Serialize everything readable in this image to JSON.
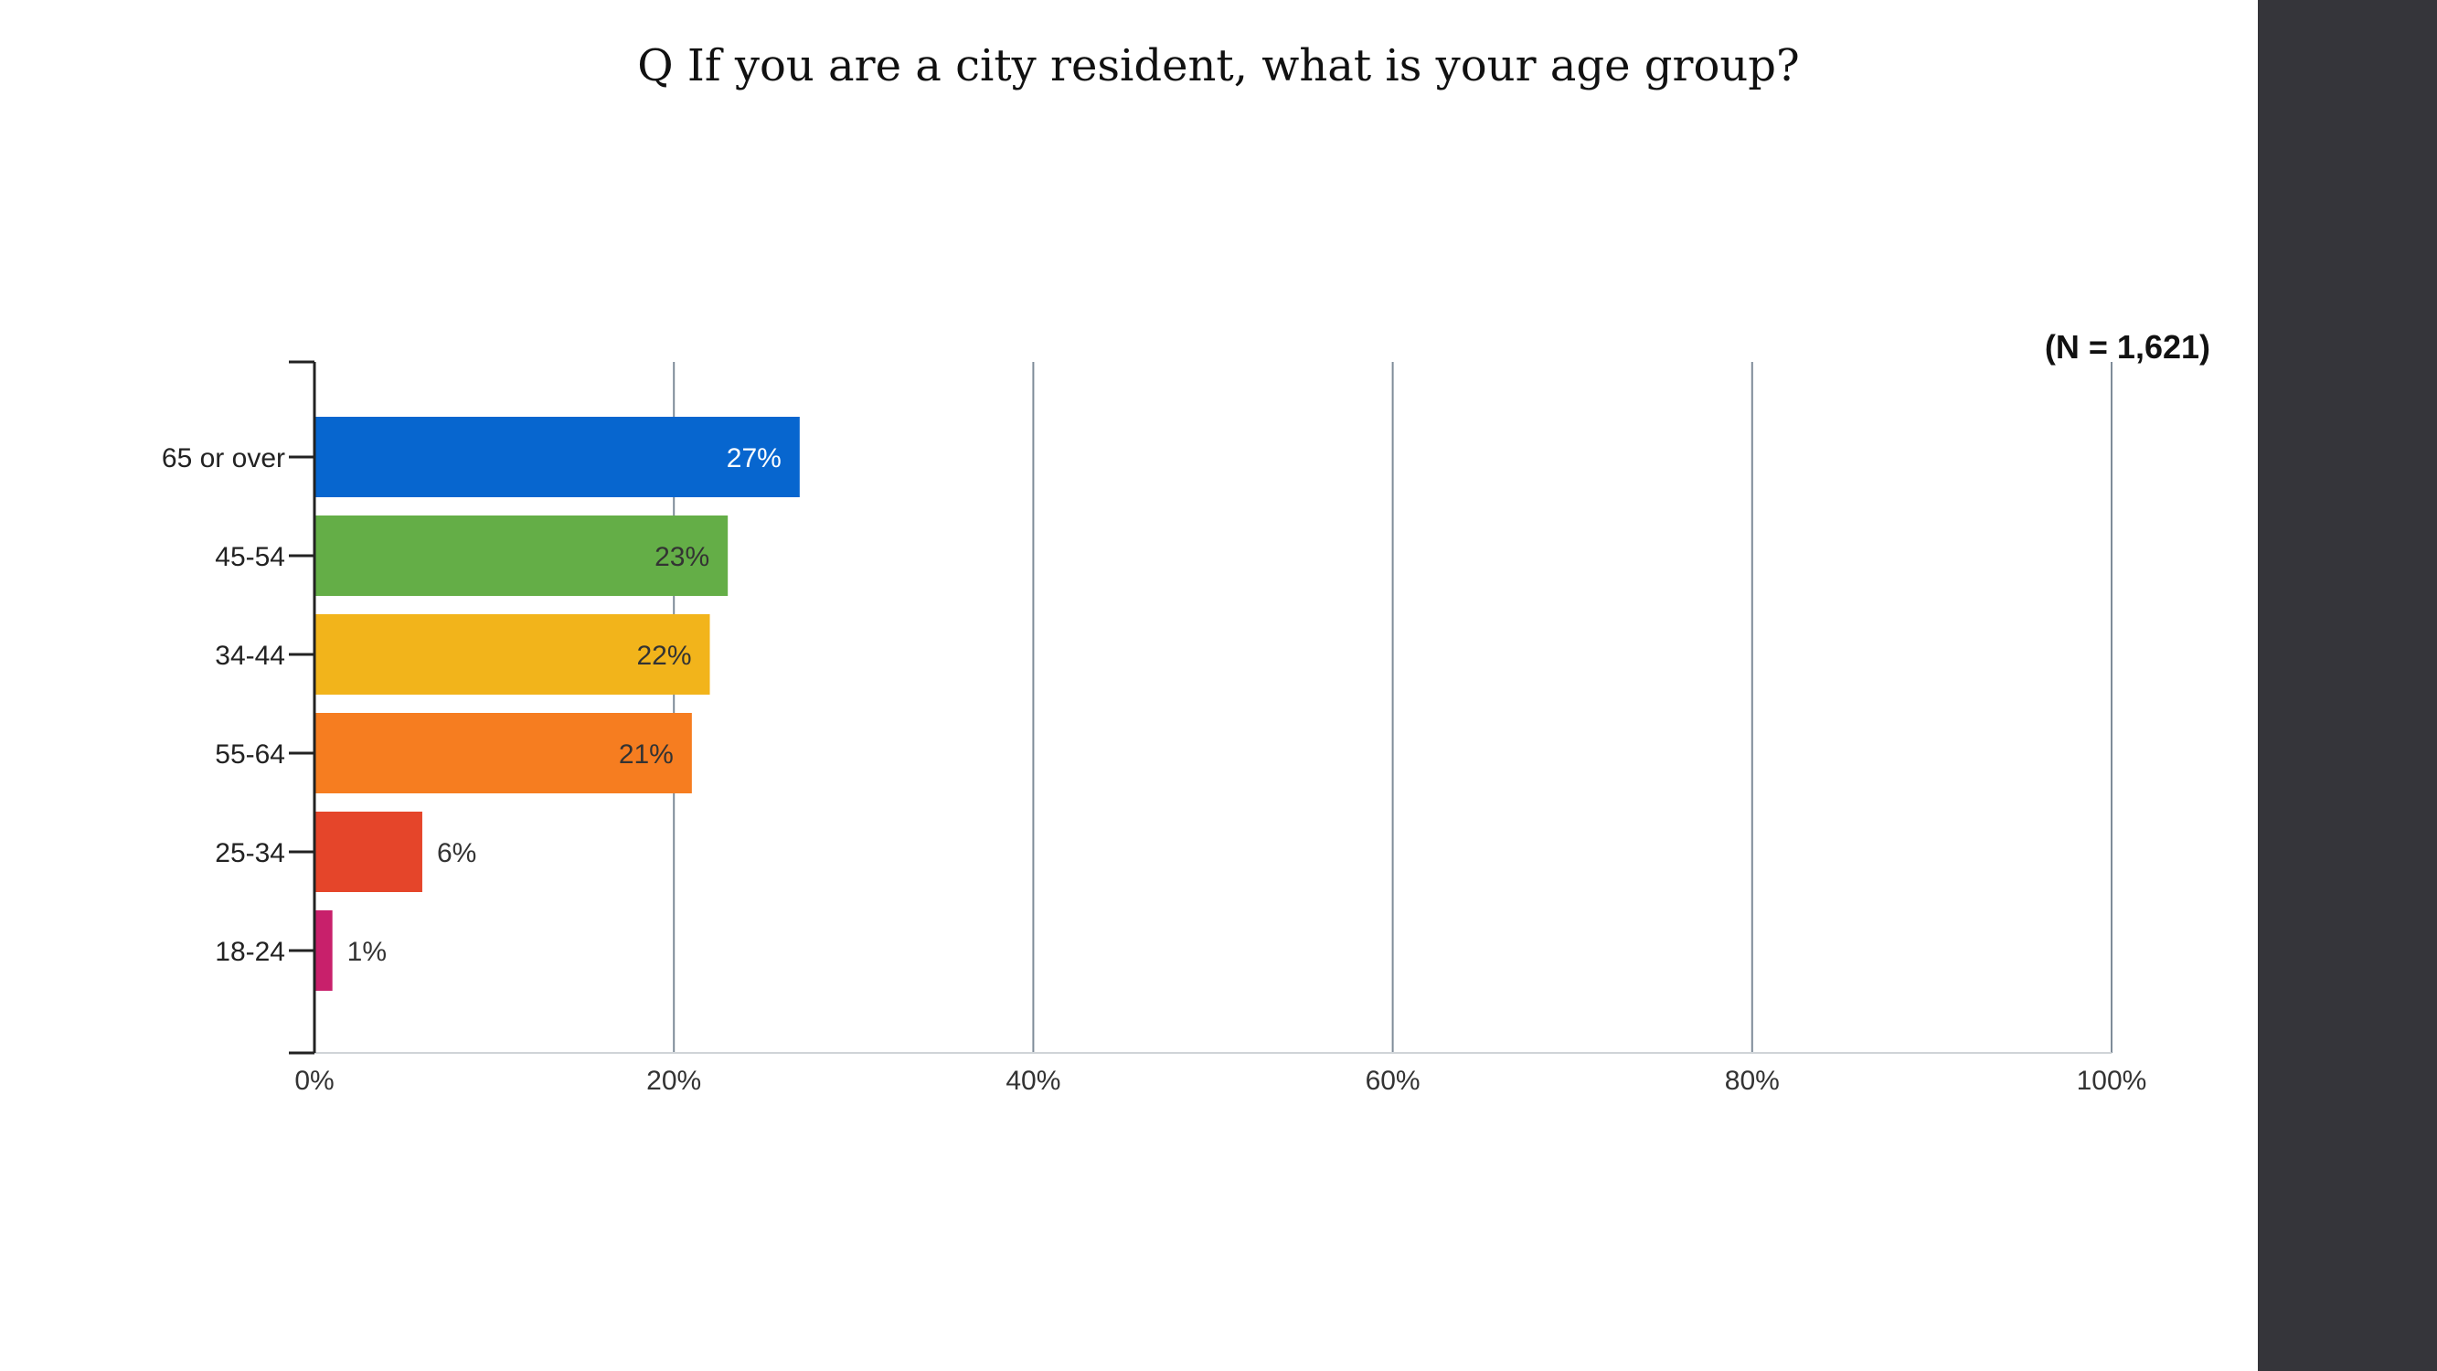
{
  "slide": {
    "title": "Q If you are a city resident, what is your age group?"
  },
  "chart_data": {
    "type": "bar",
    "orientation": "horizontal",
    "note": "(N = 1,621)",
    "categories": [
      "65 or over",
      "45-54",
      "34-44",
      "55-64",
      "25-34",
      "18-24"
    ],
    "values": [
      27,
      23,
      22,
      21,
      6,
      1
    ],
    "value_labels": [
      "27%",
      "23%",
      "22%",
      "21%",
      "6%",
      "1%"
    ],
    "colors": [
      "#0766cf",
      "#64ae47",
      "#f2b41b",
      "#f67d20",
      "#e5452a",
      "#c8206b"
    ],
    "label_colors": [
      "#ffffff",
      "#333333",
      "#333333",
      "#333333",
      "#333333",
      "#333333"
    ],
    "xlim": [
      0,
      100
    ],
    "x_ticks": [
      0,
      20,
      40,
      60,
      80,
      100
    ],
    "x_tick_labels": [
      "0%",
      "20%",
      "40%",
      "60%",
      "80%",
      "100%"
    ],
    "xlabel": "",
    "ylabel": "",
    "grid": true
  }
}
